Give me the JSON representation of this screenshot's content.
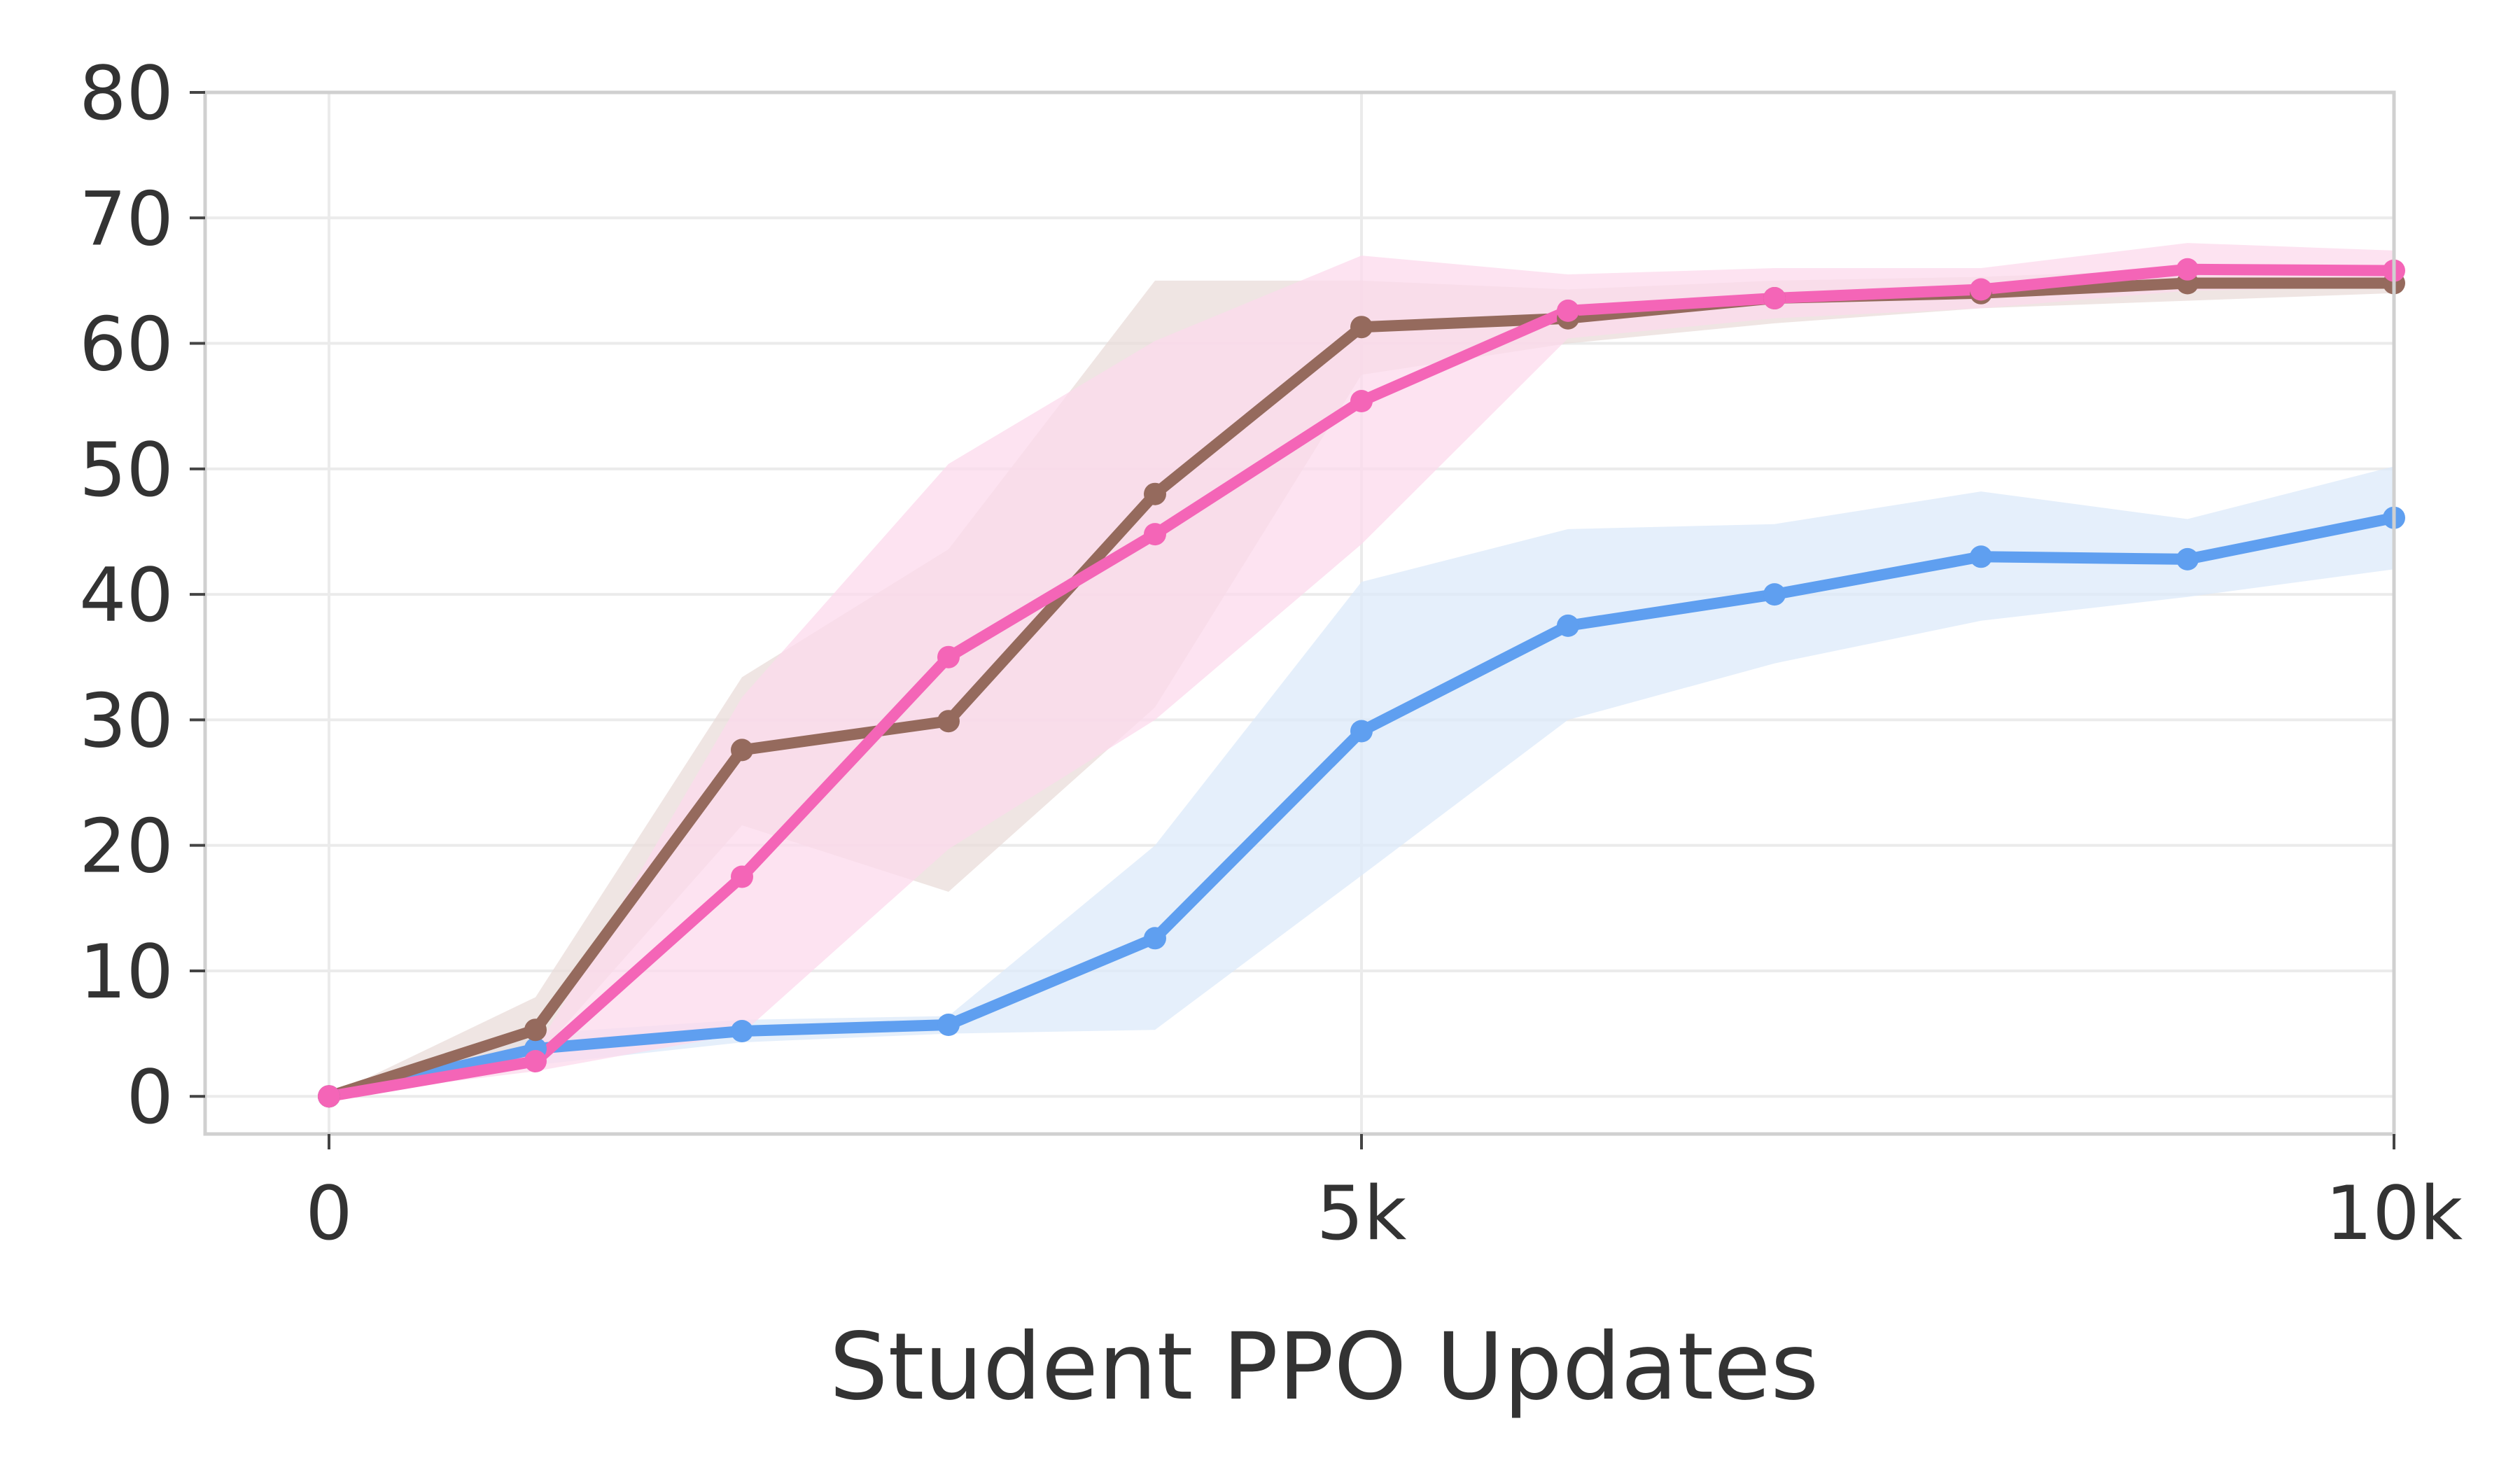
{
  "chart_data": {
    "type": "line",
    "title": "",
    "xlabel": "Student PPO Updates",
    "ylabel": "",
    "xlim": [
      -600,
      10000
    ],
    "ylim": [
      -3,
      80
    ],
    "grid": true,
    "legend": "none",
    "x_ticks": [
      {
        "value": 0,
        "label": "0"
      },
      {
        "value": 5000,
        "label": "5k"
      },
      {
        "value": 10000,
        "label": "10k"
      }
    ],
    "y_ticks": [
      {
        "value": 0,
        "label": "0"
      },
      {
        "value": 10,
        "label": "10"
      },
      {
        "value": 20,
        "label": "20"
      },
      {
        "value": 30,
        "label": "30"
      },
      {
        "value": 40,
        "label": "40"
      },
      {
        "value": 50,
        "label": "50"
      },
      {
        "value": 60,
        "label": "60"
      },
      {
        "value": 70,
        "label": "70"
      },
      {
        "value": 80,
        "label": "80"
      }
    ],
    "x": [
      0,
      1000,
      2000,
      3000,
      4000,
      5000,
      6000,
      7000,
      8000,
      9000,
      10000
    ],
    "series": [
      {
        "name": "blue",
        "color": "#5f9ff0",
        "band_color": "#dce9f9",
        "values": [
          0,
          3.8,
          5.2,
          5.7,
          12.6,
          29.1,
          37.5,
          40.0,
          43.0,
          42.8,
          46.1
        ],
        "lower": [
          0,
          2.5,
          4.3,
          5.0,
          5.3,
          17.6,
          30.0,
          34.5,
          37.9,
          39.8,
          42.0
        ],
        "upper": [
          0,
          5.0,
          6.1,
          6.4,
          20.0,
          41.0,
          45.2,
          45.6,
          48.2,
          46.0,
          50.2
        ]
      },
      {
        "name": "brown",
        "color": "#956a5d",
        "band_color": "#e9dcd9",
        "values": [
          0,
          5.3,
          27.6,
          29.9,
          48.0,
          61.3,
          62.0,
          63.6,
          64.0,
          64.8,
          64.8
        ],
        "lower": [
          0,
          3.0,
          21.6,
          16.3,
          31.0,
          57.5,
          60.0,
          61.6,
          62.8,
          63.4,
          64.0
        ],
        "upper": [
          0,
          7.9,
          33.4,
          43.6,
          65.0,
          65.0,
          64.3,
          65.0,
          65.3,
          65.9,
          65.5
        ]
      },
      {
        "name": "pink",
        "color": "#f465b7",
        "band_color": "#fcd9ec",
        "values": [
          0,
          2.8,
          17.5,
          35.0,
          44.8,
          55.4,
          62.6,
          63.6,
          64.3,
          65.9,
          65.8
        ],
        "lower": [
          0,
          2.0,
          5.0,
          19.7,
          30.0,
          44.0,
          60.4,
          62.0,
          62.8,
          64.2,
          64.5
        ],
        "upper": [
          0,
          3.6,
          31.8,
          50.4,
          60.2,
          67.0,
          65.5,
          66.0,
          66.0,
          68.0,
          67.4
        ]
      }
    ]
  }
}
